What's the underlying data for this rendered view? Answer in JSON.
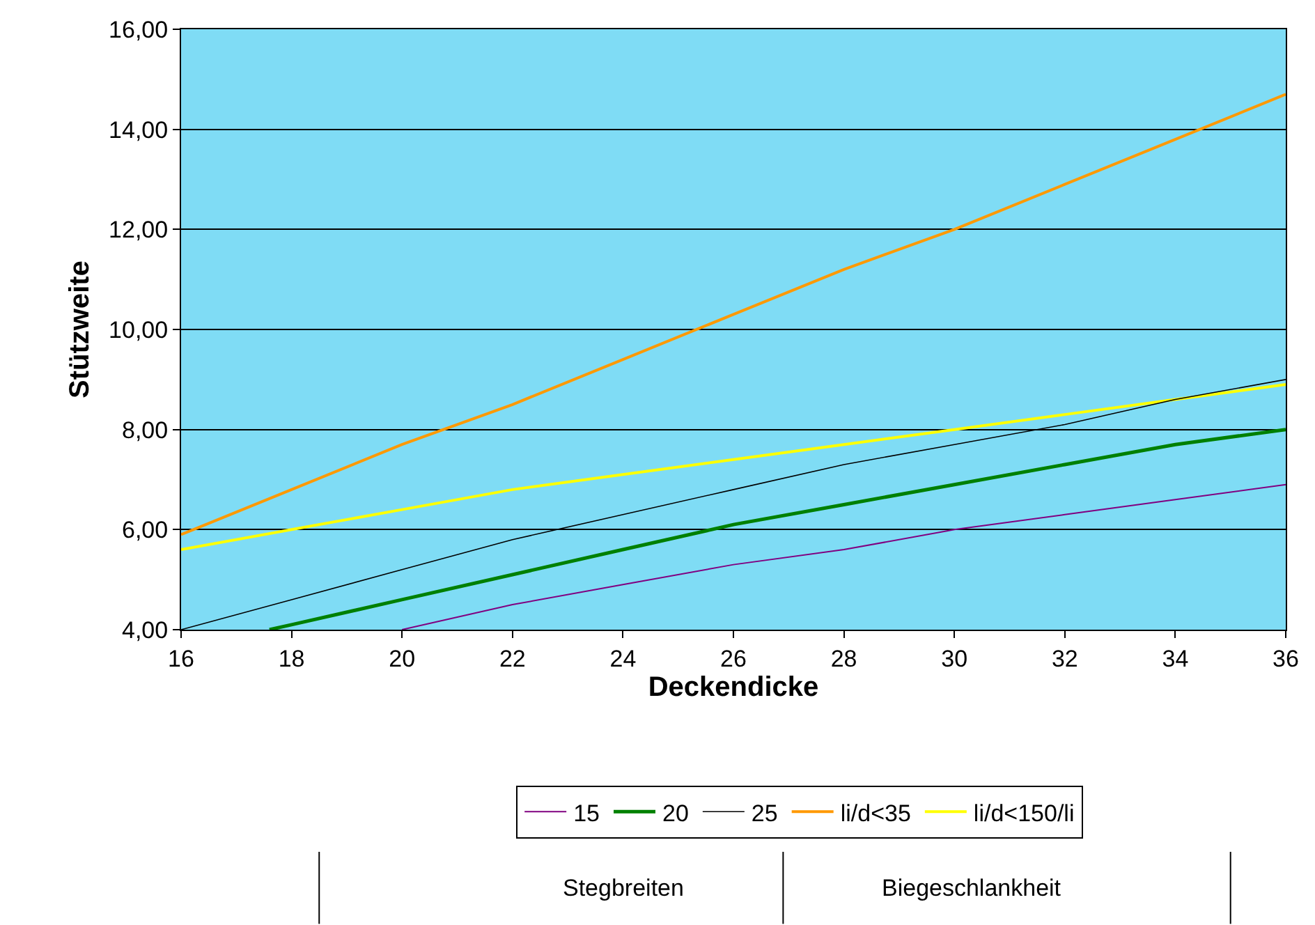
{
  "chart_data": {
    "type": "line",
    "xlabel": "Deckendicke",
    "ylabel": "Stützweite",
    "x": [
      16,
      18,
      20,
      22,
      24,
      26,
      28,
      30,
      32,
      34,
      36
    ],
    "series": [
      {
        "name": "15",
        "color": "#800080",
        "x": [
          20,
          22,
          24,
          26,
          28,
          30,
          32,
          34,
          36
        ],
        "values": [
          4.0,
          4.5,
          4.9,
          5.3,
          5.6,
          6.0,
          6.3,
          6.6,
          6.9
        ]
      },
      {
        "name": "20",
        "color": "#008000",
        "x": [
          17.6,
          18,
          20,
          22,
          24,
          26,
          28,
          30,
          32,
          34,
          36
        ],
        "values": [
          4.0,
          4.1,
          4.6,
          5.1,
          5.6,
          6.1,
          6.5,
          6.9,
          7.3,
          7.7,
          8.0
        ]
      },
      {
        "name": "25",
        "color": "#000000",
        "values": [
          4.0,
          4.6,
          5.2,
          5.8,
          6.3,
          6.8,
          7.3,
          7.7,
          8.1,
          8.6,
          9.0
        ]
      },
      {
        "name": "li/d<35",
        "color": "#ff9900",
        "values": [
          5.9,
          6.8,
          7.7,
          8.5,
          9.4,
          10.3,
          11.2,
          12.0,
          12.9,
          13.8,
          14.7
        ]
      },
      {
        "name": "li/d<150/li",
        "color": "#ffff00",
        "values": [
          5.6,
          6.0,
          6.4,
          6.8,
          7.1,
          7.4,
          7.7,
          8.0,
          8.3,
          8.6,
          8.9
        ]
      }
    ],
    "xlim": [
      16,
      36
    ],
    "xticks": [
      16,
      18,
      20,
      22,
      24,
      26,
      28,
      30,
      32,
      34,
      36
    ],
    "ylim": [
      4,
      16
    ],
    "yticks": [
      {
        "value": 4,
        "label": "4,00"
      },
      {
        "value": 6,
        "label": "6,00"
      },
      {
        "value": 8,
        "label": "8,00"
      },
      {
        "value": 10,
        "label": "10,00"
      },
      {
        "value": 12,
        "label": "12,00"
      },
      {
        "value": 14,
        "label": "14,00"
      },
      {
        "value": 16,
        "label": "16,00"
      }
    ],
    "grid": "y",
    "legend": "bottom",
    "marker": "none",
    "line_style": "solid",
    "annotations": [
      "Stegbreiten",
      "Biegeschlankheit"
    ]
  }
}
